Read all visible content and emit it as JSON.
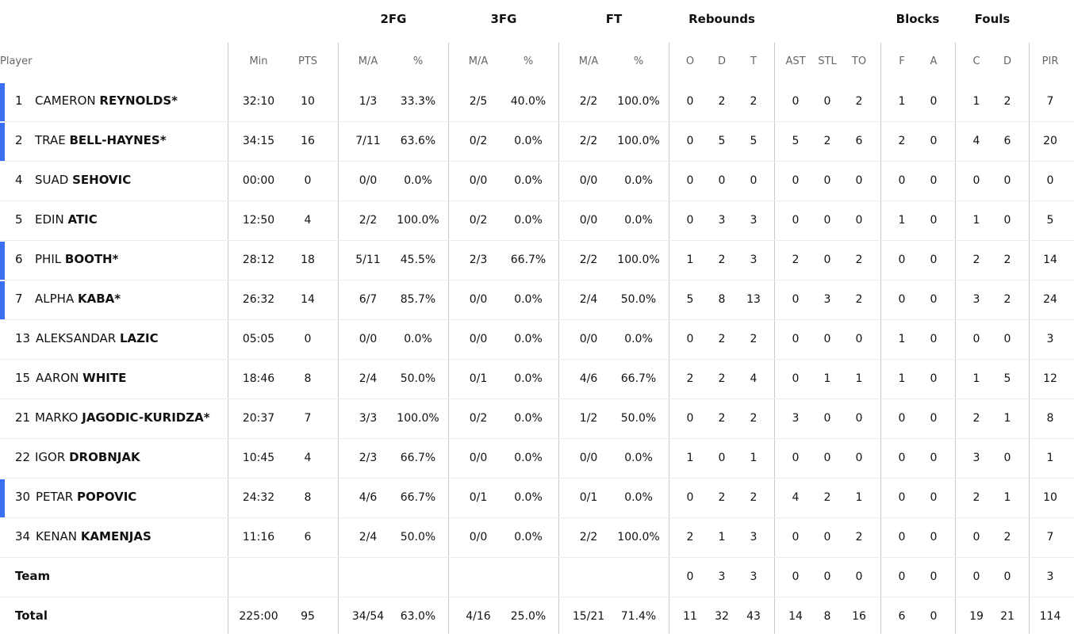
{
  "group_headers": {
    "fg2": "2FG",
    "fg3": "3FG",
    "ft": "FT",
    "rebounds": "Rebounds",
    "blocks": "Blocks",
    "fouls": "Fouls"
  },
  "columns": {
    "player": "Player",
    "min": "Min",
    "pts": "PTS",
    "fg2_ma": "M/A",
    "fg2_pct": "%",
    "fg3_ma": "M/A",
    "fg3_pct": "%",
    "ft_ma": "M/A",
    "ft_pct": "%",
    "reb_o": "O",
    "reb_d": "D",
    "reb_t": "T",
    "ast": "AST",
    "stl": "STL",
    "to": "TO",
    "blk_f": "F",
    "blk_a": "A",
    "foul_c": "C",
    "foul_d": "D",
    "pir": "PIR"
  },
  "players": [
    {
      "num": "1",
      "first": "CAMERON",
      "last": "REYNOLDS*",
      "starter": true,
      "stats": [
        "32:10",
        "10",
        "1/3",
        "33.3%",
        "2/5",
        "40.0%",
        "2/2",
        "100.0%",
        "0",
        "2",
        "2",
        "0",
        "0",
        "2",
        "1",
        "0",
        "1",
        "2",
        "7"
      ]
    },
    {
      "num": "2",
      "first": "TRAE",
      "last": "BELL-HAYNES*",
      "starter": true,
      "stats": [
        "34:15",
        "16",
        "7/11",
        "63.6%",
        "0/2",
        "0.0%",
        "2/2",
        "100.0%",
        "0",
        "5",
        "5",
        "5",
        "2",
        "6",
        "2",
        "0",
        "4",
        "6",
        "20"
      ]
    },
    {
      "num": "4",
      "first": "SUAD",
      "last": "SEHOVIC",
      "starter": false,
      "stats": [
        "00:00",
        "0",
        "0/0",
        "0.0%",
        "0/0",
        "0.0%",
        "0/0",
        "0.0%",
        "0",
        "0",
        "0",
        "0",
        "0",
        "0",
        "0",
        "0",
        "0",
        "0",
        "0"
      ]
    },
    {
      "num": "5",
      "first": "EDIN",
      "last": "ATIC",
      "starter": false,
      "stats": [
        "12:50",
        "4",
        "2/2",
        "100.0%",
        "0/2",
        "0.0%",
        "0/0",
        "0.0%",
        "0",
        "3",
        "3",
        "0",
        "0",
        "0",
        "1",
        "0",
        "1",
        "0",
        "5"
      ]
    },
    {
      "num": "6",
      "first": "PHIL",
      "last": "BOOTH*",
      "starter": true,
      "stats": [
        "28:12",
        "18",
        "5/11",
        "45.5%",
        "2/3",
        "66.7%",
        "2/2",
        "100.0%",
        "1",
        "2",
        "3",
        "2",
        "0",
        "2",
        "0",
        "0",
        "2",
        "2",
        "14"
      ]
    },
    {
      "num": "7",
      "first": "ALPHA",
      "last": "KABA*",
      "starter": true,
      "stats": [
        "26:32",
        "14",
        "6/7",
        "85.7%",
        "0/0",
        "0.0%",
        "2/4",
        "50.0%",
        "5",
        "8",
        "13",
        "0",
        "3",
        "2",
        "0",
        "0",
        "3",
        "2",
        "24"
      ]
    },
    {
      "num": "13",
      "first": "ALEKSANDAR",
      "last": "LAZIC",
      "starter": false,
      "stats": [
        "05:05",
        "0",
        "0/0",
        "0.0%",
        "0/0",
        "0.0%",
        "0/0",
        "0.0%",
        "0",
        "2",
        "2",
        "0",
        "0",
        "0",
        "1",
        "0",
        "0",
        "0",
        "3"
      ]
    },
    {
      "num": "15",
      "first": "AARON",
      "last": "WHITE",
      "starter": false,
      "stats": [
        "18:46",
        "8",
        "2/4",
        "50.0%",
        "0/1",
        "0.0%",
        "4/6",
        "66.7%",
        "2",
        "2",
        "4",
        "0",
        "1",
        "1",
        "1",
        "0",
        "1",
        "5",
        "12"
      ]
    },
    {
      "num": "21",
      "first": "MARKO",
      "last": "JAGODIC-KURIDZA*",
      "starter": false,
      "stats": [
        "20:37",
        "7",
        "3/3",
        "100.0%",
        "0/2",
        "0.0%",
        "1/2",
        "50.0%",
        "0",
        "2",
        "2",
        "3",
        "0",
        "0",
        "0",
        "0",
        "2",
        "1",
        "8"
      ]
    },
    {
      "num": "22",
      "first": "IGOR",
      "last": "DROBNJAK",
      "starter": false,
      "stats": [
        "10:45",
        "4",
        "2/3",
        "66.7%",
        "0/0",
        "0.0%",
        "0/0",
        "0.0%",
        "1",
        "0",
        "1",
        "0",
        "0",
        "0",
        "0",
        "0",
        "3",
        "0",
        "1"
      ]
    },
    {
      "num": "30",
      "first": "PETAR",
      "last": "POPOVIC",
      "starter": true,
      "stats": [
        "24:32",
        "8",
        "4/6",
        "66.7%",
        "0/1",
        "0.0%",
        "0/1",
        "0.0%",
        "0",
        "2",
        "2",
        "4",
        "2",
        "1",
        "0",
        "0",
        "2",
        "1",
        "10"
      ]
    },
    {
      "num": "34",
      "first": "KENAN",
      "last": "KAMENJAS",
      "starter": false,
      "stats": [
        "11:16",
        "6",
        "2/4",
        "50.0%",
        "0/0",
        "0.0%",
        "2/2",
        "100.0%",
        "2",
        "1",
        "3",
        "0",
        "0",
        "2",
        "0",
        "0",
        "0",
        "2",
        "7"
      ]
    }
  ],
  "team": {
    "label": "Team",
    "stats": [
      "",
      "",
      "",
      "",
      "",
      "",
      "",
      "",
      "0",
      "3",
      "3",
      "0",
      "0",
      "0",
      "0",
      "0",
      "0",
      "0",
      "3"
    ]
  },
  "total": {
    "label": "Total",
    "stats": [
      "225:00",
      "95",
      "34/54",
      "63.0%",
      "4/16",
      "25.0%",
      "15/21",
      "71.4%",
      "11",
      "32",
      "43",
      "14",
      "8",
      "16",
      "6",
      "0",
      "19",
      "21",
      "114"
    ]
  },
  "colors": {
    "starter_accent": "#3b6ef5",
    "divider": "#c9c9c9",
    "row_border": "#ebebeb",
    "header_text": "#666666"
  }
}
